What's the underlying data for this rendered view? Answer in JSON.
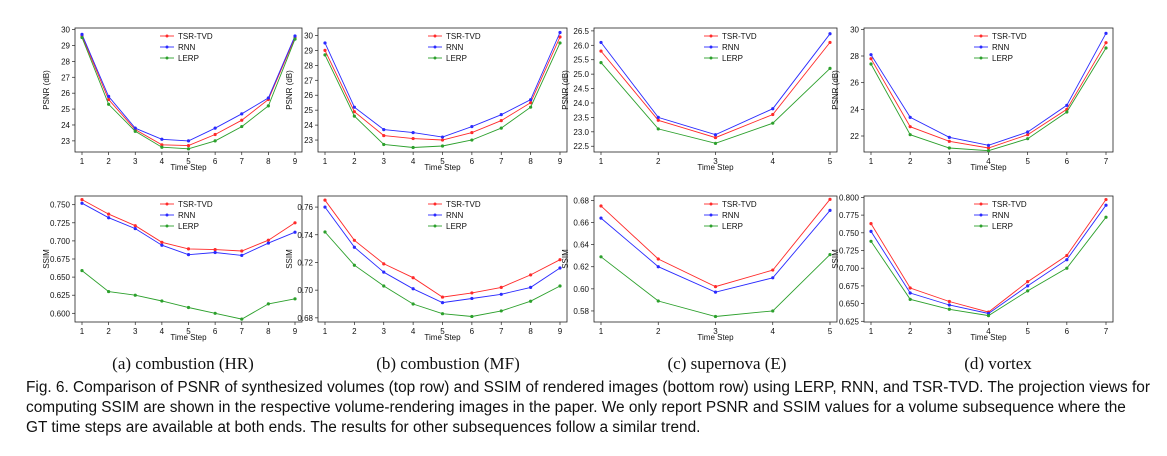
{
  "colors": {
    "tsr": "#ff2a2a",
    "rnn": "#2a2aff",
    "lerp": "#2ca02c",
    "axis": "#222222"
  },
  "subcaptions": [
    "(a) combustion (HR)",
    "(b) combustion (MF)",
    "(c) supernova (E)",
    "(d) vortex"
  ],
  "caption": "Fig. 6. Comparison of PSNR of synthesized volumes (top row) and SSIM of rendered images (bottom row) using LERP, RNN, and TSR-TVD. The projection views for computing SSIM are shown in the respective volume-rendering images in the paper. We only report PSNR and SSIM values for a volume subsequence where the GT time steps are available at both ends. The results for other subsequences follow a similar trend.",
  "chart_data": [
    {
      "id": "a-psnr",
      "type": "line",
      "xlabel": "Time Step",
      "ylabel": "PSNR (dB)",
      "x": [
        1,
        2,
        3,
        4,
        5,
        6,
        7,
        8,
        9
      ],
      "xticks": [
        "1",
        "2",
        "3",
        "4",
        "5",
        "6",
        "7",
        "8",
        "9"
      ],
      "ylim": [
        22.3,
        30.1
      ],
      "yticks": [
        "23",
        "24",
        "25",
        "26",
        "27",
        "28",
        "29",
        "30"
      ],
      "ytick_values": [
        23,
        24,
        25,
        26,
        27,
        28,
        29,
        30
      ],
      "legend": [
        "TSR-TVD",
        "RNN",
        "LERP"
      ],
      "series": [
        {
          "name": "TSR-TVD",
          "values": [
            29.6,
            25.6,
            23.7,
            22.75,
            22.7,
            23.4,
            24.3,
            25.6,
            29.5
          ]
        },
        {
          "name": "RNN",
          "values": [
            29.7,
            25.8,
            23.8,
            23.1,
            23.0,
            23.8,
            24.7,
            25.7,
            29.6
          ]
        },
        {
          "name": "LERP",
          "values": [
            29.5,
            25.3,
            23.6,
            22.6,
            22.5,
            23.0,
            23.9,
            25.2,
            29.4
          ]
        }
      ]
    },
    {
      "id": "b-psnr",
      "type": "line",
      "xlabel": "Time Step",
      "ylabel": "PSNR (dB)",
      "x": [
        1,
        2,
        3,
        4,
        5,
        6,
        7,
        8,
        9
      ],
      "xticks": [
        "1",
        "2",
        "3",
        "4",
        "5",
        "6",
        "7",
        "8",
        "9"
      ],
      "ylim": [
        22.2,
        30.5
      ],
      "yticks": [
        "23",
        "24",
        "25",
        "26",
        "27",
        "28",
        "29",
        "30"
      ],
      "ytick_values": [
        23,
        24,
        25,
        26,
        27,
        28,
        29,
        30
      ],
      "legend": [
        "TSR-TVD",
        "RNN",
        "LERP"
      ],
      "series": [
        {
          "name": "TSR-TVD",
          "values": [
            29.0,
            24.9,
            23.3,
            23.1,
            23.0,
            23.5,
            24.3,
            25.5,
            29.9
          ]
        },
        {
          "name": "RNN",
          "values": [
            29.5,
            25.2,
            23.7,
            23.5,
            23.2,
            23.9,
            24.7,
            25.7,
            30.2
          ]
        },
        {
          "name": "LERP",
          "values": [
            28.7,
            24.6,
            22.7,
            22.5,
            22.6,
            23.0,
            23.8,
            25.2,
            29.5
          ]
        }
      ]
    },
    {
      "id": "c-psnr",
      "type": "line",
      "xlabel": "Time Step",
      "ylabel": "PSNR (dB)",
      "x": [
        1,
        2,
        3,
        4,
        5
      ],
      "xticks": [
        "1",
        "2",
        "3",
        "4",
        "5"
      ],
      "ylim": [
        22.3,
        26.6
      ],
      "yticks": [
        "22.5",
        "23.0",
        "23.5",
        "24.0",
        "24.5",
        "25.0",
        "25.5",
        "26.0",
        "26.5"
      ],
      "ytick_values": [
        22.5,
        23.0,
        23.5,
        24.0,
        24.5,
        25.0,
        25.5,
        26.0,
        26.5
      ],
      "legend": [
        "TSR-TVD",
        "RNN",
        "LERP"
      ],
      "series": [
        {
          "name": "TSR-TVD",
          "values": [
            25.8,
            23.4,
            22.8,
            23.6,
            26.1
          ]
        },
        {
          "name": "RNN",
          "values": [
            26.1,
            23.5,
            22.9,
            23.8,
            26.4
          ]
        },
        {
          "name": "LERP",
          "values": [
            25.4,
            23.1,
            22.6,
            23.3,
            25.2
          ]
        }
      ]
    },
    {
      "id": "d-psnr",
      "type": "line",
      "xlabel": "Time Step",
      "ylabel": "PSNR (dB)",
      "x": [
        1,
        2,
        3,
        4,
        5,
        6,
        7
      ],
      "xticks": [
        "1",
        "2",
        "3",
        "4",
        "5",
        "6",
        "7"
      ],
      "ylim": [
        20.8,
        30.1
      ],
      "yticks": [
        "22",
        "24",
        "26",
        "28",
        "30"
      ],
      "ytick_values": [
        22,
        24,
        26,
        28,
        30
      ],
      "legend": [
        "TSR-TVD",
        "RNN",
        "LERP"
      ],
      "series": [
        {
          "name": "TSR-TVD",
          "values": [
            27.8,
            22.7,
            21.6,
            21.1,
            22.1,
            24.0,
            29.0
          ]
        },
        {
          "name": "RNN",
          "values": [
            28.1,
            23.4,
            21.9,
            21.3,
            22.3,
            24.3,
            29.7
          ]
        },
        {
          "name": "LERP",
          "values": [
            27.4,
            22.1,
            21.1,
            20.9,
            21.8,
            23.8,
            28.6
          ]
        }
      ]
    },
    {
      "id": "a-ssim",
      "type": "line",
      "xlabel": "Time Step",
      "ylabel": "SSIM",
      "x": [
        1,
        2,
        3,
        4,
        5,
        6,
        7,
        8,
        9
      ],
      "xticks": [
        "1",
        "2",
        "3",
        "4",
        "5",
        "6",
        "7",
        "8",
        "9"
      ],
      "ylim": [
        0.588,
        0.762
      ],
      "yticks": [
        "0.600",
        "0.625",
        "0.650",
        "0.675",
        "0.700",
        "0.725",
        "0.750"
      ],
      "ytick_values": [
        0.6,
        0.625,
        0.65,
        0.675,
        0.7,
        0.725,
        0.75
      ],
      "legend": [
        "TSR-TVD",
        "RNN",
        "LERP"
      ],
      "series": [
        {
          "name": "TSR-TVD",
          "values": [
            0.757,
            0.737,
            0.721,
            0.698,
            0.689,
            0.688,
            0.686,
            0.701,
            0.725
          ]
        },
        {
          "name": "RNN",
          "values": [
            0.752,
            0.732,
            0.717,
            0.694,
            0.681,
            0.684,
            0.68,
            0.697,
            0.712
          ]
        },
        {
          "name": "LERP",
          "values": [
            0.659,
            0.63,
            0.625,
            0.617,
            0.608,
            0.6,
            0.592,
            0.613,
            0.62
          ]
        }
      ]
    },
    {
      "id": "b-ssim",
      "type": "line",
      "xlabel": "Time Step",
      "ylabel": "SSIM",
      "x": [
        1,
        2,
        3,
        4,
        5,
        6,
        7,
        8,
        9
      ],
      "xticks": [
        "1",
        "2",
        "3",
        "4",
        "5",
        "6",
        "7",
        "8",
        "9"
      ],
      "ylim": [
        0.677,
        0.768
      ],
      "yticks": [
        "0.68",
        "0.70",
        "0.72",
        "0.74",
        "0.76"
      ],
      "ytick_values": [
        0.68,
        0.7,
        0.72,
        0.74,
        0.76
      ],
      "legend": [
        "TSR-TVD",
        "RNN",
        "LERP"
      ],
      "series": [
        {
          "name": "TSR-TVD",
          "values": [
            0.765,
            0.736,
            0.719,
            0.709,
            0.695,
            0.698,
            0.702,
            0.711,
            0.722
          ]
        },
        {
          "name": "RNN",
          "values": [
            0.76,
            0.731,
            0.713,
            0.701,
            0.691,
            0.694,
            0.697,
            0.702,
            0.716
          ]
        },
        {
          "name": "LERP",
          "values": [
            0.742,
            0.718,
            0.703,
            0.69,
            0.683,
            0.681,
            0.685,
            0.692,
            0.703
          ]
        }
      ]
    },
    {
      "id": "c-ssim",
      "type": "line",
      "xlabel": "Time Step",
      "ylabel": "SSIM",
      "x": [
        1,
        2,
        3,
        4,
        5
      ],
      "xticks": [
        "1",
        "2",
        "3",
        "4",
        "5"
      ],
      "ylim": [
        0.57,
        0.684
      ],
      "yticks": [
        "0.58",
        "0.60",
        "0.62",
        "0.64",
        "0.66",
        "0.68"
      ],
      "ytick_values": [
        0.58,
        0.6,
        0.62,
        0.64,
        0.66,
        0.68
      ],
      "legend": [
        "TSR-TVD",
        "RNN",
        "LERP"
      ],
      "series": [
        {
          "name": "TSR-TVD",
          "values": [
            0.675,
            0.627,
            0.602,
            0.617,
            0.681
          ]
        },
        {
          "name": "RNN",
          "values": [
            0.664,
            0.62,
            0.597,
            0.61,
            0.671
          ]
        },
        {
          "name": "LERP",
          "values": [
            0.629,
            0.589,
            0.575,
            0.58,
            0.631
          ]
        }
      ]
    },
    {
      "id": "d-ssim",
      "type": "line",
      "xlabel": "Time Step",
      "ylabel": "SSIM",
      "x": [
        1,
        2,
        3,
        4,
        5,
        6,
        7
      ],
      "xticks": [
        "1",
        "2",
        "3",
        "4",
        "5",
        "6",
        "7"
      ],
      "ylim": [
        0.624,
        0.802
      ],
      "yticks": [
        "0.625",
        "0.650",
        "0.675",
        "0.700",
        "0.725",
        "0.750",
        "0.775",
        "0.800"
      ],
      "ytick_values": [
        0.625,
        0.65,
        0.675,
        0.7,
        0.725,
        0.75,
        0.775,
        0.8
      ],
      "legend": [
        "TSR-TVD",
        "RNN",
        "LERP"
      ],
      "series": [
        {
          "name": "TSR-TVD",
          "values": [
            0.763,
            0.672,
            0.653,
            0.638,
            0.681,
            0.718,
            0.797
          ]
        },
        {
          "name": "RNN",
          "values": [
            0.752,
            0.665,
            0.648,
            0.636,
            0.675,
            0.712,
            0.789
          ]
        },
        {
          "name": "LERP",
          "values": [
            0.738,
            0.656,
            0.642,
            0.633,
            0.668,
            0.7,
            0.772
          ]
        }
      ]
    }
  ]
}
